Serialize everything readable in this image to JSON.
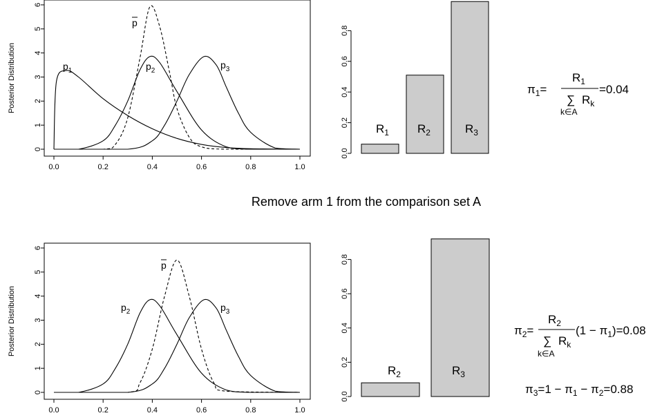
{
  "separator_text": "Remove arm 1 from the comparison set A",
  "panels": {
    "top": {
      "density": {
        "ylabel": "Posterior Distribution",
        "xlim": [
          0,
          1
        ],
        "ylim": [
          0,
          6
        ],
        "xticks": [
          "0.0",
          "0.2",
          "0.4",
          "0.6",
          "0.8",
          "1.0"
        ],
        "yticks": [
          "0",
          "1",
          "2",
          "3",
          "4",
          "5",
          "6"
        ],
        "labels": {
          "p1": "p",
          "p1_sub": "1",
          "p2": "p",
          "p2_sub": "2",
          "p3": "p",
          "p3_sub": "3",
          "pbar": "p"
        }
      },
      "bars": {
        "ylim": [
          0,
          1
        ],
        "yticks": [
          "0.0",
          "0.2",
          "0.4",
          "0.6",
          "0.8"
        ],
        "labels": [
          {
            "main": "R",
            "sub": "1"
          },
          {
            "main": "R",
            "sub": "2"
          },
          {
            "main": "R",
            "sub": "3"
          }
        ]
      },
      "equation": {
        "lhs": "π",
        "lhs_sub": "1",
        "num": "R",
        "num_sub": "1",
        "den": "R",
        "den_sub": "k",
        "sum": "∑",
        "sum_sub": "k∈A",
        "result": "=0.04"
      }
    },
    "bottom": {
      "density": {
        "ylabel": "Posterior Distribution",
        "xlim": [
          0,
          1
        ],
        "ylim": [
          0,
          6
        ],
        "xticks": [
          "0.0",
          "0.2",
          "0.4",
          "0.6",
          "0.8",
          "1.0"
        ],
        "yticks": [
          "0",
          "1",
          "2",
          "3",
          "4",
          "5",
          "6"
        ],
        "labels": {
          "p2": "p",
          "p2_sub": "2",
          "p3": "p",
          "p3_sub": "3",
          "pbar": "p"
        }
      },
      "bars": {
        "ylim": [
          0,
          1
        ],
        "yticks": [
          "0.0",
          "0.2",
          "0.4",
          "0.6",
          "0.8"
        ],
        "labels": [
          {
            "main": "R",
            "sub": "2"
          },
          {
            "main": "R",
            "sub": "3"
          }
        ]
      },
      "equation1": {
        "lhs": "π",
        "lhs_sub": "2",
        "num": "R",
        "num_sub": "2",
        "den": "R",
        "den_sub": "k",
        "sum": "∑",
        "sum_sub": "k∈A",
        "result_a": "(1 − π",
        "result_sub": "1",
        "result_b": ")=0.08"
      },
      "equation2": {
        "text_a": "π",
        "sub_a": "3",
        "text_b": "=1 − π",
        "sub_b": "1",
        "text_c": " − π",
        "sub_c": "2",
        "text_d": "=0.88"
      }
    }
  },
  "chart_data": [
    {
      "type": "line",
      "title": "",
      "xlabel": "",
      "ylabel": "Posterior Distribution",
      "xlim": [
        0,
        1
      ],
      "ylim": [
        0,
        6
      ],
      "series": [
        {
          "name": "p1",
          "style": "solid",
          "points": [
            [
              0,
              0
            ],
            [
              0.01,
              2.8
            ],
            [
              0.05,
              3.27
            ],
            [
              0.1,
              3.0
            ],
            [
              0.2,
              2.1
            ],
            [
              0.3,
              1.4
            ],
            [
              0.4,
              0.85
            ],
            [
              0.5,
              0.45
            ],
            [
              0.6,
              0.2
            ],
            [
              0.7,
              0.07
            ],
            [
              0.8,
              0.02
            ],
            [
              1,
              0
            ]
          ]
        },
        {
          "name": "p2",
          "style": "solid",
          "points": [
            [
              0,
              0
            ],
            [
              0.1,
              0.0
            ],
            [
              0.2,
              0.35
            ],
            [
              0.25,
              1.0
            ],
            [
              0.3,
              2.0
            ],
            [
              0.35,
              3.3
            ],
            [
              0.39,
              3.85
            ],
            [
              0.43,
              3.6
            ],
            [
              0.5,
              2.4
            ],
            [
              0.6,
              0.8
            ],
            [
              0.7,
              0.1
            ],
            [
              0.8,
              0.0
            ],
            [
              1,
              0
            ]
          ]
        },
        {
          "name": "p3",
          "style": "solid",
          "points": [
            [
              0,
              0
            ],
            [
              0.3,
              0.0
            ],
            [
              0.4,
              0.35
            ],
            [
              0.45,
              1.0
            ],
            [
              0.5,
              2.0
            ],
            [
              0.55,
              3.1
            ],
            [
              0.61,
              3.85
            ],
            [
              0.66,
              3.5
            ],
            [
              0.7,
              2.6
            ],
            [
              0.75,
              1.5
            ],
            [
              0.8,
              0.7
            ],
            [
              0.9,
              0.05
            ],
            [
              1,
              0
            ]
          ]
        },
        {
          "name": "p̄",
          "style": "dashed",
          "points": [
            [
              0,
              0
            ],
            [
              0.2,
              0.0
            ],
            [
              0.25,
              0.2
            ],
            [
              0.3,
              1.3
            ],
            [
              0.35,
              3.8
            ],
            [
              0.39,
              5.92
            ],
            [
              0.43,
              5.1
            ],
            [
              0.47,
              3.2
            ],
            [
              0.5,
              1.7
            ],
            [
              0.55,
              0.5
            ],
            [
              0.6,
              0.1
            ],
            [
              0.7,
              0.0
            ],
            [
              1,
              0
            ]
          ]
        }
      ]
    },
    {
      "type": "bar",
      "categories": [
        "R1",
        "R2",
        "R3"
      ],
      "values": [
        0.06,
        0.51,
        0.99
      ],
      "ylim": [
        0,
        1
      ]
    },
    {
      "type": "line",
      "title": "",
      "xlabel": "",
      "ylabel": "Posterior Distribution",
      "xlim": [
        0,
        1
      ],
      "ylim": [
        0,
        6
      ],
      "series": [
        {
          "name": "p2",
          "style": "solid",
          "points": [
            [
              0,
              0
            ],
            [
              0.1,
              0.0
            ],
            [
              0.2,
              0.35
            ],
            [
              0.25,
              1.0
            ],
            [
              0.3,
              2.0
            ],
            [
              0.35,
              3.3
            ],
            [
              0.39,
              3.85
            ],
            [
              0.43,
              3.6
            ],
            [
              0.5,
              2.4
            ],
            [
              0.6,
              0.8
            ],
            [
              0.7,
              0.1
            ],
            [
              0.8,
              0.0
            ],
            [
              1,
              0
            ]
          ]
        },
        {
          "name": "p3",
          "style": "solid",
          "points": [
            [
              0,
              0
            ],
            [
              0.3,
              0.0
            ],
            [
              0.4,
              0.35
            ],
            [
              0.45,
              1.0
            ],
            [
              0.5,
              2.0
            ],
            [
              0.55,
              3.1
            ],
            [
              0.61,
              3.85
            ],
            [
              0.66,
              3.5
            ],
            [
              0.7,
              2.6
            ],
            [
              0.75,
              1.5
            ],
            [
              0.8,
              0.7
            ],
            [
              0.9,
              0.05
            ],
            [
              1,
              0
            ]
          ]
        },
        {
          "name": "p̄",
          "style": "dashed",
          "points": [
            [
              0,
              0
            ],
            [
              0.3,
              0.0
            ],
            [
              0.35,
              0.4
            ],
            [
              0.4,
              1.8
            ],
            [
              0.45,
              4.0
            ],
            [
              0.5,
              5.5
            ],
            [
              0.55,
              4.0
            ],
            [
              0.6,
              1.8
            ],
            [
              0.65,
              0.4
            ],
            [
              0.7,
              0.05
            ],
            [
              1,
              0
            ]
          ]
        }
      ]
    },
    {
      "type": "bar",
      "categories": [
        "R2",
        "R3"
      ],
      "values": [
        0.08,
        0.92
      ],
      "ylim": [
        0,
        1
      ]
    }
  ]
}
